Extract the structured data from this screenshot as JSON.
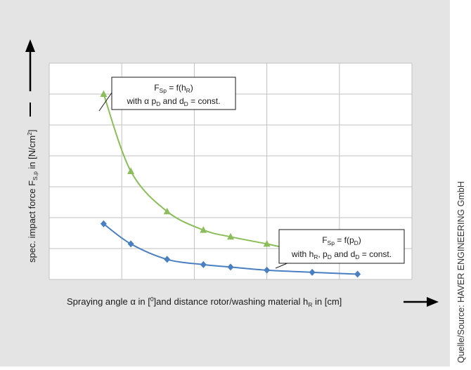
{
  "chart_data": {
    "type": "line",
    "title": "",
    "x": [
      1,
      2,
      3,
      4,
      5,
      6,
      7,
      8,
      9
    ],
    "xlim": [
      0,
      10
    ],
    "ylim": [
      0,
      7
    ],
    "grid": true,
    "legend": "none",
    "xlabel": {
      "main": "Spraying angle α in [",
      "sup": "0",
      "mid": "]and distance rotor/washing material h",
      "sub": "R",
      "end": " in [cm]"
    },
    "ylabel": {
      "main": "spec. impact force F",
      "sub": "S,p",
      "mid": " in [N/cm",
      "sup": "2",
      "end": "]"
    },
    "series": [
      {
        "color": "#8bbd5a",
        "marker": "triangle",
        "x": [
          1.5,
          2.25,
          3.25,
          4.25,
          5,
          6,
          7.25,
          8.5
        ],
        "values": [
          6.0,
          3.5,
          2.2,
          1.6,
          1.38,
          1.15,
          0.85,
          0.7
        ]
      },
      {
        "color": "#4a7fc1",
        "marker": "diamond",
        "x": [
          1.5,
          2.25,
          3.25,
          4.25,
          5,
          6,
          7.25,
          8.5
        ],
        "values": [
          1.8,
          1.15,
          0.65,
          0.48,
          0.4,
          0.3,
          0.23,
          0.17
        ]
      }
    ],
    "annotations": [
      {
        "line1": {
          "main": "F",
          "sub": "Sp",
          "end": " = f(h",
          "sub2": "R",
          "tail": ")"
        },
        "line2": {
          "main": "with α p",
          "sub": "D",
          "end": " and d",
          "sub2": "D",
          "tail": " = const."
        }
      },
      {
        "line1": {
          "main": "F",
          "sub": "Sp",
          "end": " = f(p",
          "sub2": "D",
          "tail": ")"
        },
        "line2": {
          "main": "with h",
          "sub": "R",
          "end": ", p",
          "sub2": "D",
          "tail": " and d",
          "sub3": "D",
          "tail2": " = const."
        }
      }
    ]
  },
  "source_note": "Quelle/Source: HAVER ENGINEERING GmbH"
}
